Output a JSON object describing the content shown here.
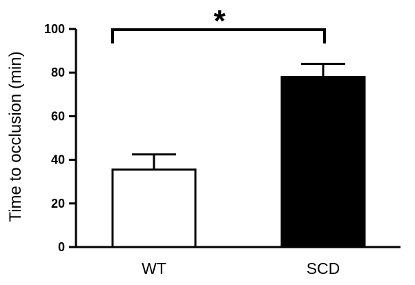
{
  "chart_data": {
    "type": "bar",
    "categories": [
      "WT",
      "SCD"
    ],
    "values": [
      35.5,
      78
    ],
    "errors": [
      7,
      6
    ],
    "bar_colors": [
      "#ffffff",
      "#000000"
    ],
    "xlabel": "",
    "ylabel": "Time to occlusion (min)",
    "ylim": [
      0,
      100
    ],
    "yticks": [
      "0",
      "20",
      "40",
      "60",
      "80",
      "100"
    ],
    "significance": {
      "label": "*",
      "between": [
        "WT",
        "SCD"
      ]
    }
  }
}
